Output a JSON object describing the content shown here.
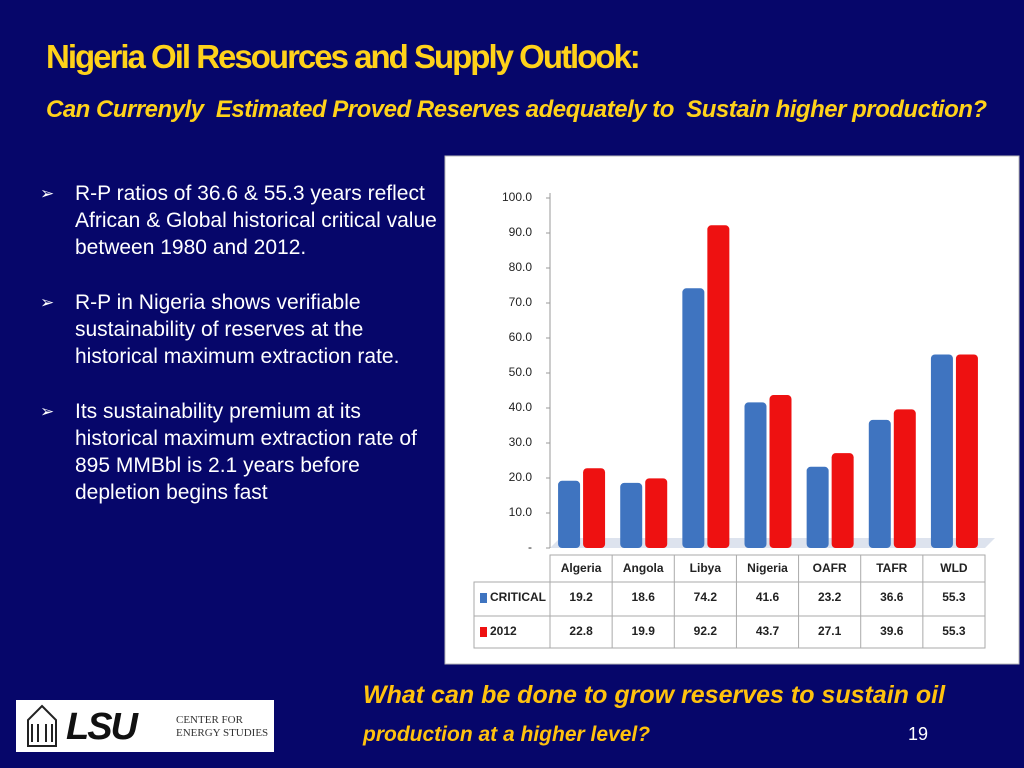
{
  "header": {
    "title": "Nigeria Oil Resources and Supply Outlook:",
    "subtitle": "Can Currenyly  Estimated Proved Reserves adequately to  Sustain higher production?"
  },
  "bullets": [
    "R-P ratios of 36.6 & 55.3 years reflect African & Global historical critical value between 1980 and 2012.",
    "R-P in Nigeria shows verifiable sustainability of reserves at the historical maximum extraction rate.",
    "Its sustainability premium at its historical maximum extraction rate of 895 MMBbl is 2.1 years before depletion begins fast"
  ],
  "question": [
    "What can be done to grow reserves to sustain oil",
    "production at a higher level?"
  ],
  "page_number": "19",
  "logo": {
    "name": "LSU",
    "line1": "CENTER FOR",
    "line2": "ENERGY STUDIES"
  },
  "chart_data": {
    "type": "bar",
    "categories": [
      "Algeria",
      "Angola",
      "Libya",
      "Nigeria",
      "OAFR",
      "TAFR",
      "WLD"
    ],
    "series": [
      {
        "name": "CRITICAL",
        "color": "#3f74c0",
        "values": [
          19.2,
          18.6,
          74.2,
          41.6,
          23.2,
          36.6,
          55.3
        ]
      },
      {
        "name": "2012",
        "color": "#ee1111",
        "values": [
          22.8,
          19.9,
          92.2,
          43.7,
          27.1,
          39.6,
          55.3
        ]
      }
    ],
    "ylim": [
      0,
      100
    ],
    "yticks": [
      {
        "value": 0,
        "label": "-"
      },
      {
        "value": 10,
        "label": "10.0"
      },
      {
        "value": 20,
        "label": "20.0"
      },
      {
        "value": 30,
        "label": "30.0"
      },
      {
        "value": 40,
        "label": "40.0"
      },
      {
        "value": 50,
        "label": "50.0"
      },
      {
        "value": 60,
        "label": "60.0"
      },
      {
        "value": 70,
        "label": "70.0"
      },
      {
        "value": 80,
        "label": "80.0"
      },
      {
        "value": 90,
        "label": "90.0"
      },
      {
        "value": 100,
        "label": "100.0"
      }
    ]
  }
}
